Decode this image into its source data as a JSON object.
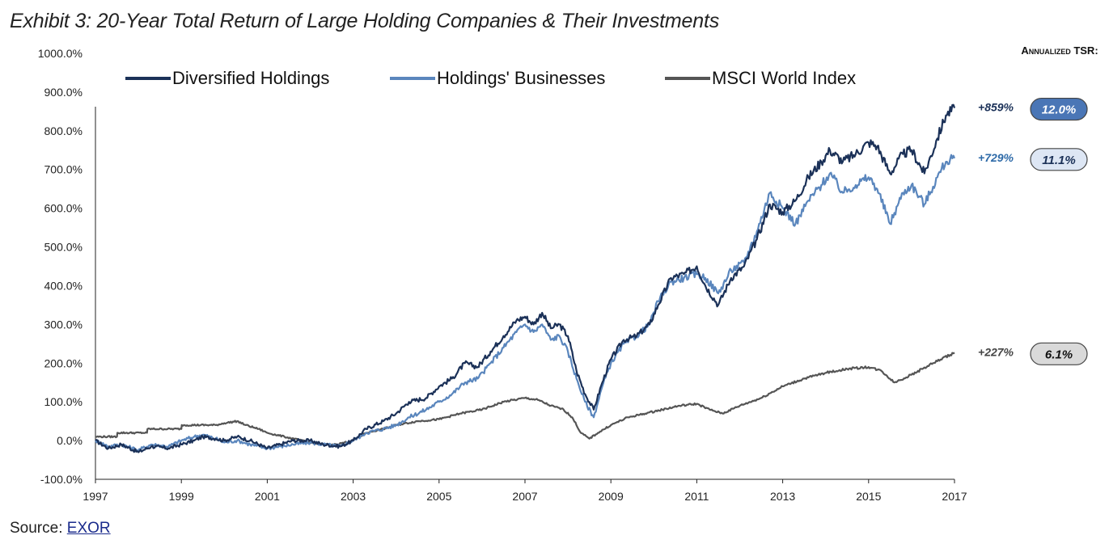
{
  "title": "Exhibit 3: 20-Year Total Return of Large Holding Companies & Their Investments",
  "annualized_header": "Annualized TSR:",
  "source": {
    "label": "Source: ",
    "link": "EXOR"
  },
  "colors": {
    "diversified": "#1b3158",
    "businesses": "#5a86bd",
    "msci": "#555555",
    "axis": "#222222"
  },
  "end_labels": [
    {
      "series": "Diversified Holdings",
      "text": "+859%",
      "tsr": "12.0%"
    },
    {
      "series": "Holdings' Businesses",
      "text": "+729%",
      "tsr": "11.1%"
    },
    {
      "series": "MSCI World Index",
      "text": "+227%",
      "tsr": "6.1%"
    }
  ],
  "chart_data": {
    "type": "line",
    "title": "Exhibit 3: 20-Year Total Return of Large Holding Companies & Their Investments",
    "xlabel": "",
    "ylabel": "",
    "xlim": [
      1997,
      2017
    ],
    "ylim": [
      -100,
      1000
    ],
    "x_ticks": [
      "1997",
      "1999",
      "2001",
      "2003",
      "2005",
      "2007",
      "2009",
      "2011",
      "2013",
      "2015",
      "2017"
    ],
    "y_ticks": [
      "-100.0%",
      "0.0%",
      "100.0%",
      "200.0%",
      "300.0%",
      "400.0%",
      "500.0%",
      "600.0%",
      "700.0%",
      "800.0%",
      "900.0%",
      "1000.0%"
    ],
    "legend": "top",
    "series": [
      {
        "name": "Diversified Holdings",
        "points": [
          [
            1997,
            0
          ],
          [
            1997.3,
            -20
          ],
          [
            1997.6,
            -10
          ],
          [
            1998.0,
            -30
          ],
          [
            1998.3,
            -15
          ],
          [
            1998.7,
            -20
          ],
          [
            1999.0,
            -10
          ],
          [
            1999.3,
            0
          ],
          [
            1999.5,
            10
          ],
          [
            1999.8,
            5
          ],
          [
            2000.0,
            0
          ],
          [
            2000.3,
            10
          ],
          [
            2000.6,
            0
          ],
          [
            2001.0,
            -20
          ],
          [
            2001.3,
            -10
          ],
          [
            2001.6,
            0
          ],
          [
            2002.0,
            0
          ],
          [
            2002.3,
            -10
          ],
          [
            2002.7,
            -15
          ],
          [
            2003.0,
            0
          ],
          [
            2003.3,
            30
          ],
          [
            2003.7,
            50
          ],
          [
            2004.0,
            70
          ],
          [
            2004.3,
            100
          ],
          [
            2004.7,
            110
          ],
          [
            2005.0,
            140
          ],
          [
            2005.3,
            160
          ],
          [
            2005.6,
            200
          ],
          [
            2005.9,
            190
          ],
          [
            2006.2,
            230
          ],
          [
            2006.5,
            270
          ],
          [
            2006.8,
            310
          ],
          [
            2007.0,
            320
          ],
          [
            2007.2,
            300
          ],
          [
            2007.4,
            330
          ],
          [
            2007.6,
            290
          ],
          [
            2007.8,
            300
          ],
          [
            2008.0,
            270
          ],
          [
            2008.2,
            180
          ],
          [
            2008.4,
            120
          ],
          [
            2008.6,
            80
          ],
          [
            2008.8,
            150
          ],
          [
            2009.0,
            210
          ],
          [
            2009.3,
            260
          ],
          [
            2009.6,
            270
          ],
          [
            2009.9,
            300
          ],
          [
            2010.1,
            350
          ],
          [
            2010.4,
            420
          ],
          [
            2010.7,
            430
          ],
          [
            2011.0,
            450
          ],
          [
            2011.2,
            400
          ],
          [
            2011.5,
            350
          ],
          [
            2011.8,
            420
          ],
          [
            2012.1,
            450
          ],
          [
            2012.4,
            520
          ],
          [
            2012.7,
            610
          ],
          [
            2013.0,
            590
          ],
          [
            2013.3,
            620
          ],
          [
            2013.6,
            680
          ],
          [
            2013.9,
            720
          ],
          [
            2014.1,
            750
          ],
          [
            2014.4,
            720
          ],
          [
            2014.7,
            740
          ],
          [
            2015.0,
            770
          ],
          [
            2015.2,
            760
          ],
          [
            2015.5,
            690
          ],
          [
            2015.8,
            740
          ],
          [
            2016.0,
            750
          ],
          [
            2016.3,
            690
          ],
          [
            2016.6,
            780
          ],
          [
            2016.8,
            840
          ],
          [
            2017.0,
            859
          ]
        ],
        "end_value": 859
      },
      {
        "name": "Holdings' Businesses",
        "points": [
          [
            1997,
            0
          ],
          [
            1997.3,
            -15
          ],
          [
            1997.6,
            -10
          ],
          [
            1998.0,
            -25
          ],
          [
            1998.3,
            -10
          ],
          [
            1998.7,
            -15
          ],
          [
            1999.0,
            0
          ],
          [
            1999.3,
            10
          ],
          [
            1999.5,
            15
          ],
          [
            1999.8,
            5
          ],
          [
            2000.0,
            -5
          ],
          [
            2000.3,
            0
          ],
          [
            2000.6,
            -10
          ],
          [
            2001.0,
            -20
          ],
          [
            2001.3,
            -15
          ],
          [
            2001.6,
            -10
          ],
          [
            2002.0,
            -5
          ],
          [
            2002.3,
            -10
          ],
          [
            2002.7,
            -15
          ],
          [
            2003.0,
            0
          ],
          [
            2003.3,
            20
          ],
          [
            2003.7,
            30
          ],
          [
            2004.0,
            40
          ],
          [
            2004.3,
            60
          ],
          [
            2004.7,
            80
          ],
          [
            2005.0,
            100
          ],
          [
            2005.3,
            120
          ],
          [
            2005.6,
            150
          ],
          [
            2005.9,
            160
          ],
          [
            2006.2,
            200
          ],
          [
            2006.5,
            240
          ],
          [
            2006.8,
            280
          ],
          [
            2007.0,
            300
          ],
          [
            2007.2,
            280
          ],
          [
            2007.4,
            300
          ],
          [
            2007.6,
            260
          ],
          [
            2007.8,
            270
          ],
          [
            2008.0,
            230
          ],
          [
            2008.2,
            160
          ],
          [
            2008.4,
            100
          ],
          [
            2008.6,
            60
          ],
          [
            2008.8,
            140
          ],
          [
            2009.0,
            200
          ],
          [
            2009.3,
            250
          ],
          [
            2009.6,
            270
          ],
          [
            2009.9,
            300
          ],
          [
            2010.1,
            360
          ],
          [
            2010.4,
            410
          ],
          [
            2010.7,
            420
          ],
          [
            2011.0,
            430
          ],
          [
            2011.2,
            420
          ],
          [
            2011.5,
            380
          ],
          [
            2011.8,
            440
          ],
          [
            2012.1,
            460
          ],
          [
            2012.4,
            540
          ],
          [
            2012.7,
            640
          ],
          [
            2013.0,
            600
          ],
          [
            2013.3,
            560
          ],
          [
            2013.6,
            620
          ],
          [
            2013.9,
            660
          ],
          [
            2014.1,
            690
          ],
          [
            2014.4,
            640
          ],
          [
            2014.7,
            660
          ],
          [
            2015.0,
            680
          ],
          [
            2015.2,
            650
          ],
          [
            2015.5,
            560
          ],
          [
            2015.8,
            640
          ],
          [
            2016.0,
            660
          ],
          [
            2016.3,
            610
          ],
          [
            2016.6,
            680
          ],
          [
            2016.8,
            720
          ],
          [
            2017.0,
            729
          ]
        ],
        "end_value": 729
      },
      {
        "name": "MSCI World Index",
        "points": [
          [
            1997,
            10
          ],
          [
            1997.5,
            10
          ],
          [
            1997.51,
            20
          ],
          [
            1998.2,
            20
          ],
          [
            1998.21,
            30
          ],
          [
            1999.0,
            30
          ],
          [
            1999.01,
            40
          ],
          [
            1999.8,
            40
          ],
          [
            2000.0,
            45
          ],
          [
            2000.3,
            50
          ],
          [
            2000.5,
            40
          ],
          [
            2000.8,
            30
          ],
          [
            2001.0,
            20
          ],
          [
            2001.4,
            10
          ],
          [
            2001.8,
            0
          ],
          [
            2002.2,
            -10
          ],
          [
            2002.6,
            -10
          ],
          [
            2003.0,
            0
          ],
          [
            2003.3,
            20
          ],
          [
            2003.7,
            30
          ],
          [
            2004.0,
            40
          ],
          [
            2004.5,
            50
          ],
          [
            2005.0,
            55
          ],
          [
            2005.5,
            70
          ],
          [
            2006.0,
            80
          ],
          [
            2006.5,
            100
          ],
          [
            2007.0,
            110
          ],
          [
            2007.3,
            105
          ],
          [
            2007.6,
            90
          ],
          [
            2007.9,
            80
          ],
          [
            2008.1,
            60
          ],
          [
            2008.3,
            20
          ],
          [
            2008.5,
            5
          ],
          [
            2008.7,
            20
          ],
          [
            2009.0,
            40
          ],
          [
            2009.4,
            60
          ],
          [
            2009.8,
            70
          ],
          [
            2010.2,
            80
          ],
          [
            2010.6,
            90
          ],
          [
            2011.0,
            95
          ],
          [
            2011.3,
            80
          ],
          [
            2011.6,
            70
          ],
          [
            2012.0,
            90
          ],
          [
            2012.5,
            110
          ],
          [
            2013.0,
            140
          ],
          [
            2013.5,
            160
          ],
          [
            2014.0,
            175
          ],
          [
            2014.5,
            185
          ],
          [
            2015.0,
            190
          ],
          [
            2015.3,
            180
          ],
          [
            2015.6,
            150
          ],
          [
            2016.0,
            170
          ],
          [
            2016.5,
            200
          ],
          [
            2017.0,
            227
          ]
        ],
        "end_value": 227
      }
    ]
  }
}
